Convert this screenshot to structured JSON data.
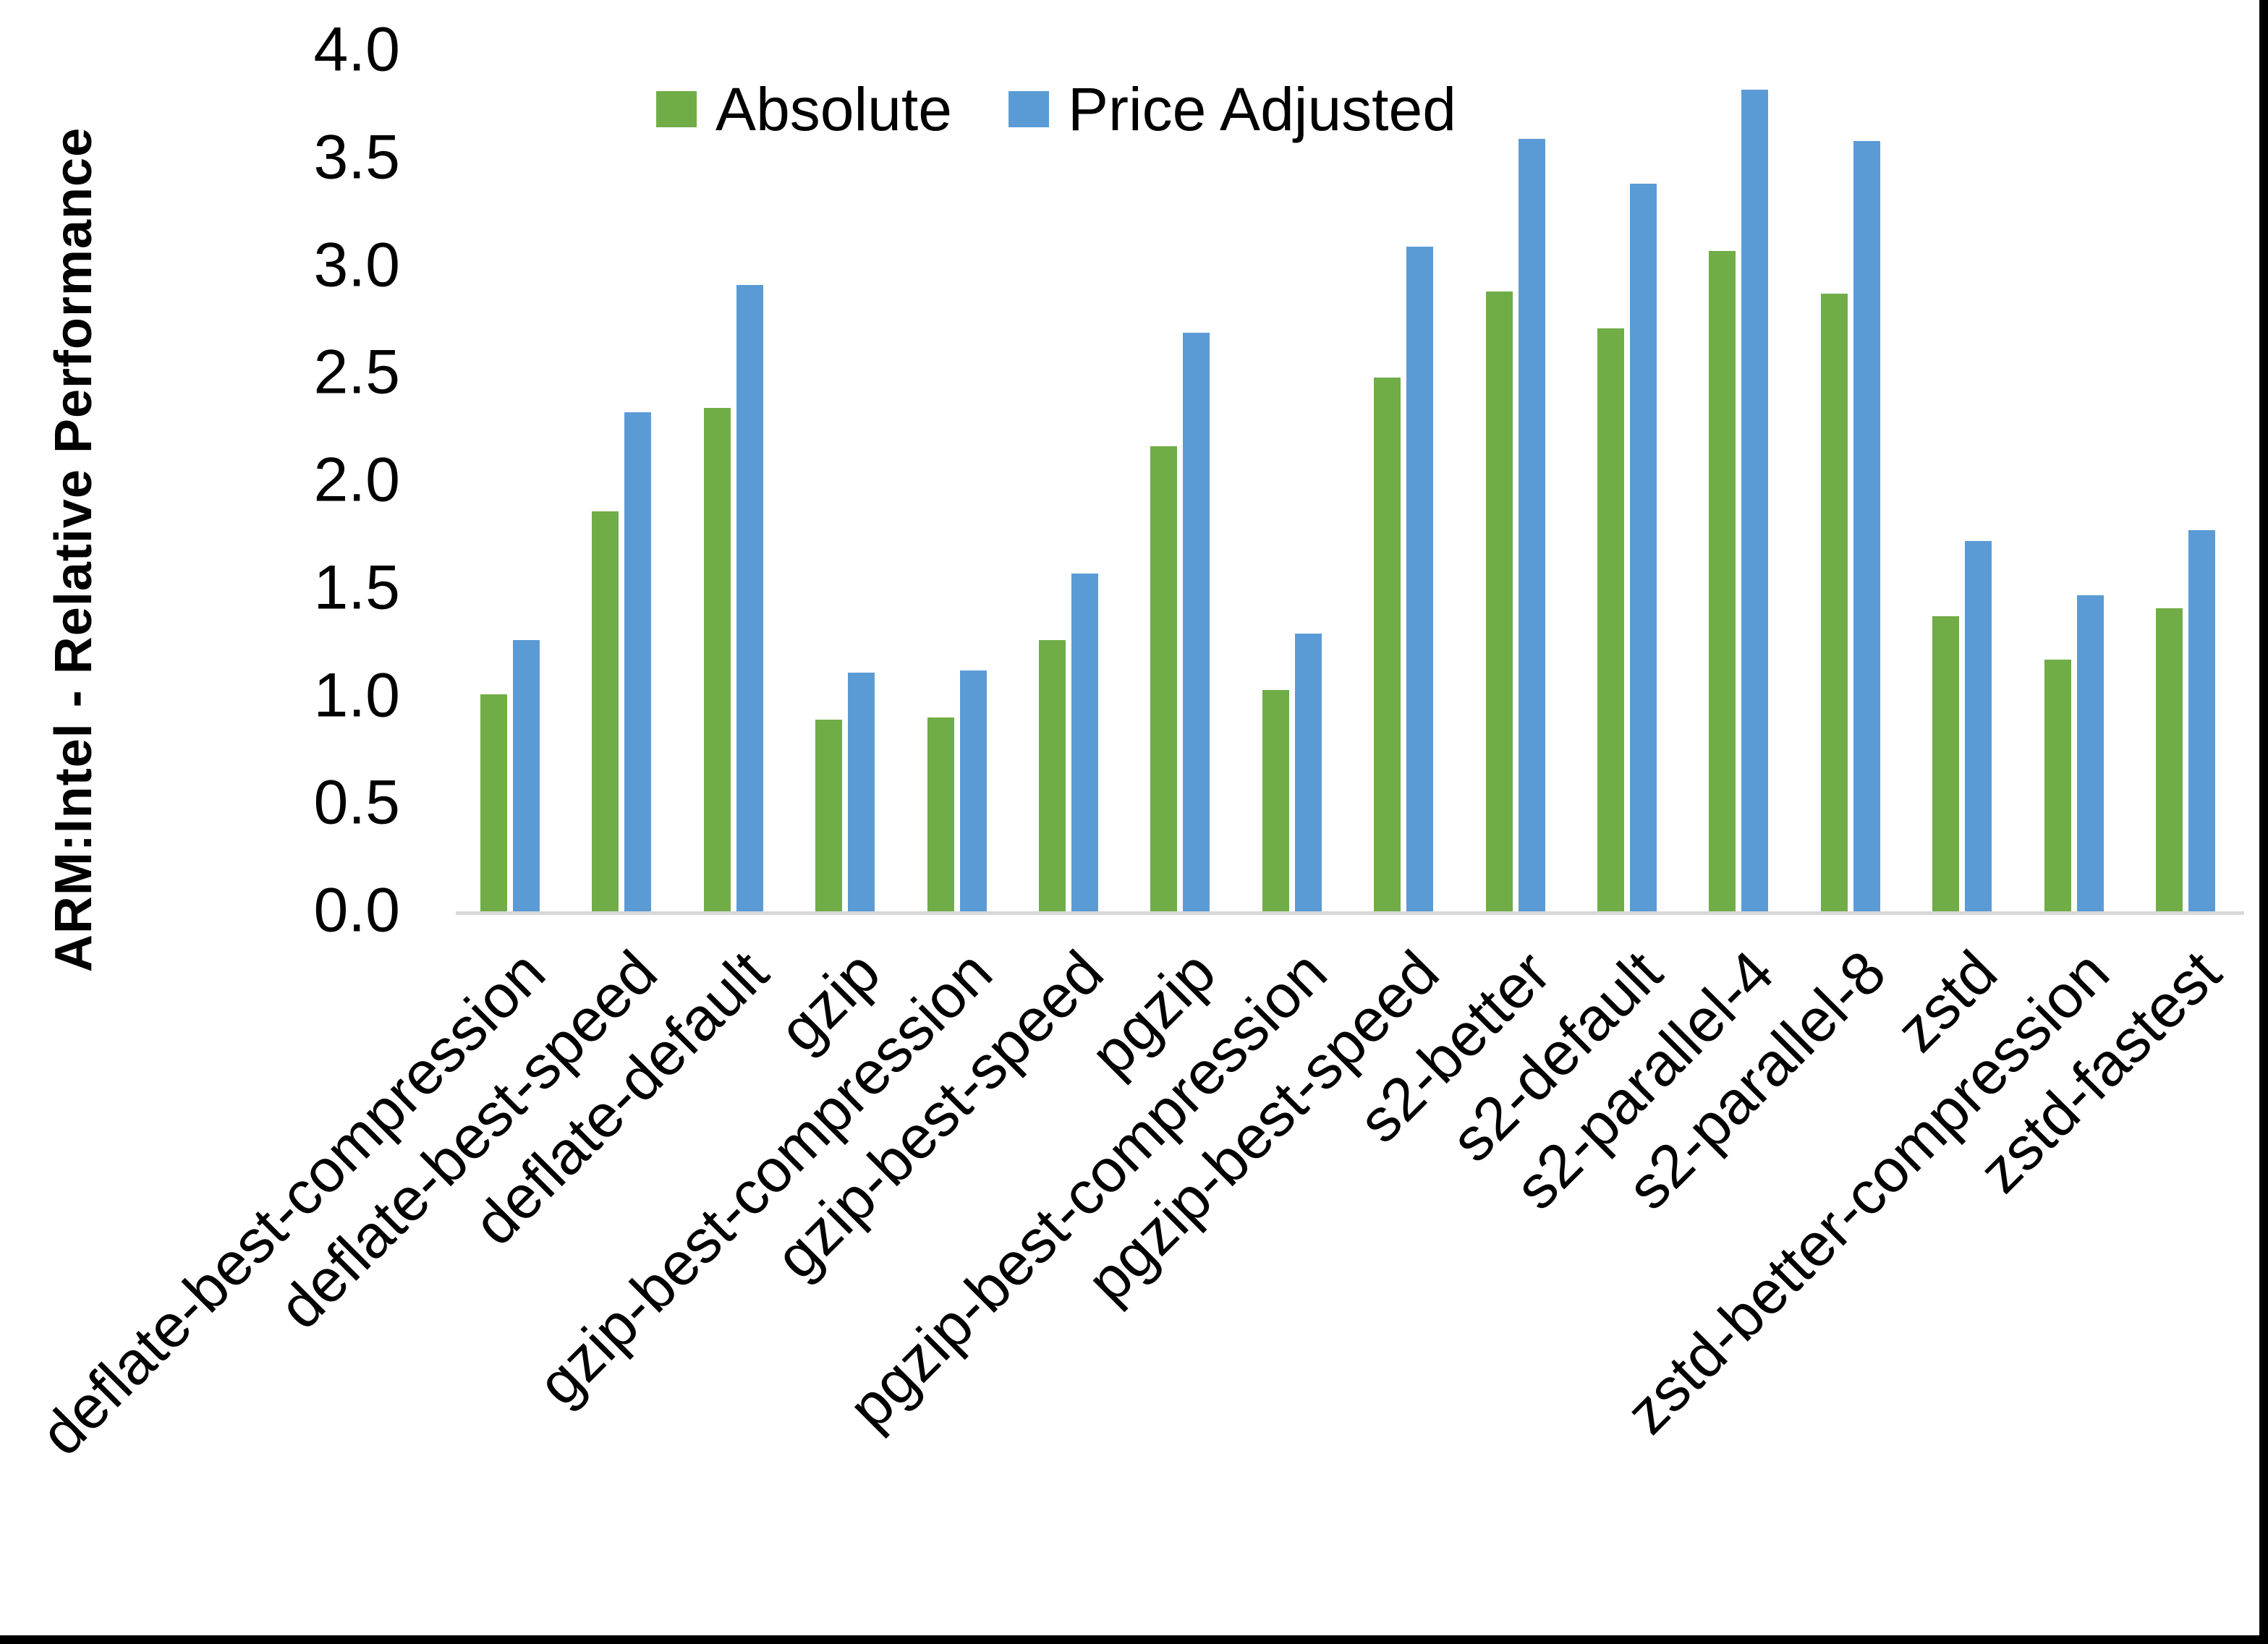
{
  "chart_data": {
    "type": "bar",
    "title": "",
    "xlabel": "",
    "ylabel": "ARM:Intel - Relative Performance",
    "ylim": [
      0.0,
      4.0
    ],
    "ytick_step": 0.5,
    "ytick_labels": [
      "0.0",
      "0.5",
      "1.0",
      "1.5",
      "2.0",
      "2.5",
      "3.0",
      "3.5",
      "4.0"
    ],
    "grid": false,
    "legend_position": "top-center",
    "categories": [
      "deflate-best-compression",
      "deflate-best-speed",
      "deflate-default",
      "gzip",
      "gzip-best-compression",
      "gzip-best-speed",
      "pgzip",
      "pgzip-best-compression",
      "pgzip-best-speed",
      "s2-better",
      "s2-default",
      "s2-parallel-4",
      "s2-parallel-8",
      "zstd",
      "zstd-better-compression",
      "zstd-fastest"
    ],
    "series": [
      {
        "name": "Absolute",
        "color": "#70AD47",
        "values": [
          1.01,
          1.86,
          2.34,
          0.89,
          0.9,
          1.26,
          2.16,
          1.03,
          2.48,
          2.88,
          2.71,
          3.07,
          2.87,
          1.37,
          1.17,
          1.41
        ]
      },
      {
        "name": "Price Adjusted",
        "color": "#5B9BD5",
        "values": [
          1.26,
          2.32,
          2.91,
          1.11,
          1.12,
          1.57,
          2.69,
          1.29,
          3.09,
          3.59,
          3.38,
          3.82,
          3.58,
          1.72,
          1.47,
          1.77
        ]
      }
    ],
    "colors": {
      "axis_line": "#D9D9D9",
      "text": "#000000",
      "background": "#FFFFFF",
      "frame_border": "#000000"
    }
  }
}
